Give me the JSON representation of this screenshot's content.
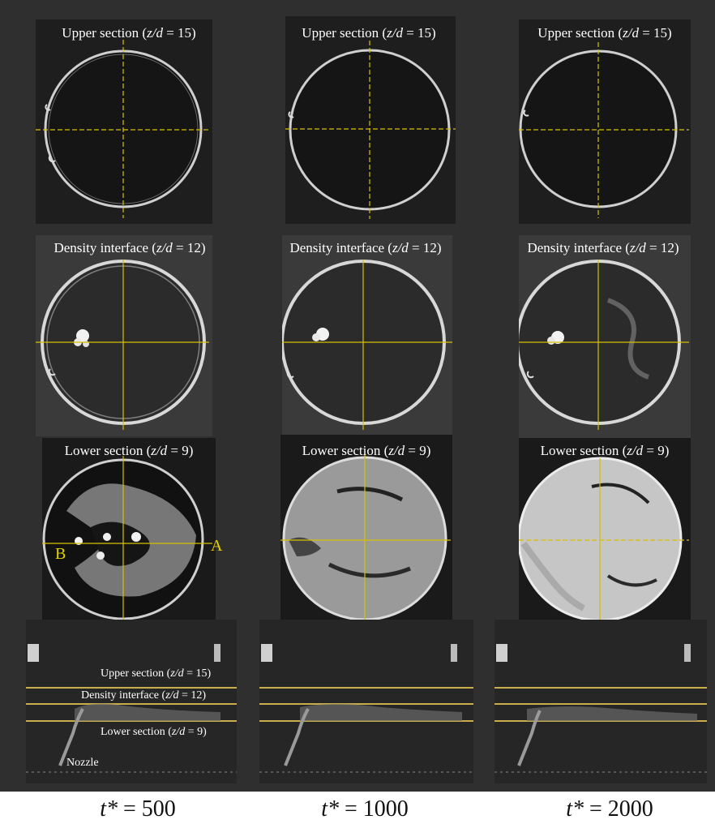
{
  "figure": {
    "rows": {
      "upper": {
        "caption_pre": "Upper section (",
        "var": "z/d",
        "caption_post": " = 15)"
      },
      "density": {
        "caption_pre": "Density interface (",
        "var": "z/d",
        "caption_post": " = 12)"
      },
      "lower": {
        "caption_pre": "Lower section (",
        "var": "z/d",
        "caption_post": " = 9)"
      }
    },
    "side_labels": {
      "upper": {
        "pre": "Upper section (",
        "var": "z/d",
        "post": " = 15)"
      },
      "density": {
        "pre": "Density interface (",
        "var": "z/d",
        "post": " = 12)"
      },
      "lower": {
        "pre": "Lower section (",
        "var": "z/d",
        "post": " = 9)"
      },
      "nozzle": "Nozzle"
    },
    "markers": {
      "a": "A",
      "b": "B"
    },
    "columns": [
      {
        "t_var": "t*",
        "t_value": " = 500"
      },
      {
        "t_var": "t*",
        "t_value": " = 1000"
      },
      {
        "t_var": "t*",
        "t_value": " = 2000"
      }
    ],
    "colors": {
      "background": "#2f2f2f",
      "crosshair": "#d8c000",
      "section_line": "#c9ad4a",
      "caption": "#ffffff"
    }
  }
}
